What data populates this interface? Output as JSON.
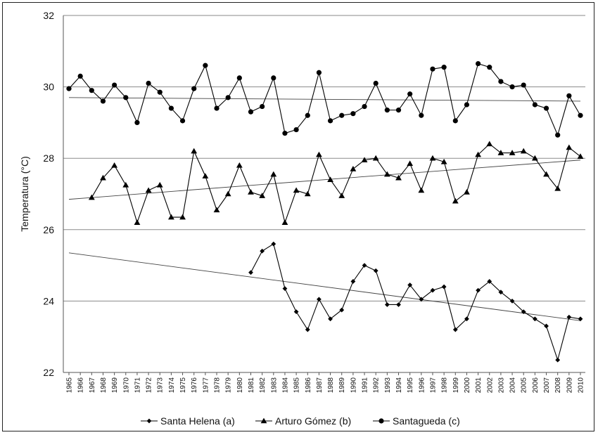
{
  "chart_data": {
    "type": "line",
    "title": "",
    "xlabel": "",
    "ylabel": "Temperatura (°C)",
    "ylim": [
      22,
      32
    ],
    "yticks": [
      22,
      24,
      26,
      28,
      30,
      32
    ],
    "grid": "horizontal",
    "legend_position": "bottom",
    "x": [
      1965,
      1966,
      1967,
      1968,
      1969,
      1970,
      1971,
      1972,
      1973,
      1974,
      1975,
      1976,
      1977,
      1978,
      1979,
      1980,
      1981,
      1982,
      1983,
      1984,
      1985,
      1986,
      1987,
      1988,
      1989,
      1990,
      1991,
      1992,
      1993,
      1994,
      1995,
      1996,
      1997,
      1998,
      1999,
      2000,
      2001,
      2002,
      2003,
      2004,
      2005,
      2006,
      2007,
      2008,
      2009,
      2010
    ],
    "series": [
      {
        "name": "Santa Helena (a)",
        "marker": "diamond",
        "color": "#000000",
        "values": [
          null,
          null,
          null,
          null,
          null,
          null,
          null,
          null,
          null,
          null,
          null,
          null,
          null,
          null,
          null,
          null,
          24.8,
          25.4,
          25.6,
          24.35,
          23.7,
          23.2,
          24.05,
          23.5,
          23.75,
          24.55,
          25.0,
          24.85,
          23.9,
          23.9,
          24.45,
          24.05,
          24.3,
          24.4,
          23.2,
          23.5,
          24.3,
          24.55,
          24.25,
          24.0,
          23.7,
          23.5,
          23.3,
          22.35,
          23.55,
          23.5
        ],
        "trend": [
          25.35,
          23.45
        ]
      },
      {
        "name": "Arturo Gómez (b)",
        "marker": "triangle",
        "color": "#000000",
        "values": [
          null,
          null,
          26.9,
          27.45,
          27.8,
          27.25,
          26.2,
          27.1,
          27.25,
          26.35,
          26.35,
          28.2,
          27.5,
          26.55,
          27.0,
          27.8,
          27.05,
          26.95,
          27.55,
          26.2,
          27.1,
          27.0,
          28.1,
          27.4,
          26.95,
          27.7,
          27.95,
          28.0,
          27.55,
          27.45,
          27.85,
          27.1,
          28.0,
          27.9,
          26.8,
          27.05,
          28.1,
          28.4,
          28.15,
          28.15,
          28.2,
          28.0,
          27.55,
          27.15,
          28.3,
          28.05
        ],
        "trend": [
          26.85,
          27.95
        ]
      },
      {
        "name": "Santagueda (c)",
        "marker": "circle",
        "color": "#000000",
        "values": [
          29.95,
          30.3,
          29.9,
          29.6,
          30.05,
          29.7,
          29.0,
          30.1,
          29.85,
          29.4,
          29.05,
          29.95,
          30.6,
          29.4,
          29.7,
          30.25,
          29.3,
          29.45,
          30.25,
          28.7,
          28.8,
          29.2,
          30.4,
          29.05,
          29.2,
          29.25,
          29.45,
          30.1,
          29.35,
          29.35,
          29.8,
          29.2,
          30.5,
          30.55,
          29.05,
          29.5,
          30.65,
          30.55,
          30.15,
          30.0,
          30.05,
          29.5,
          29.4,
          28.65,
          29.75,
          29.2
        ],
        "trend": [
          29.7,
          29.6
        ]
      }
    ]
  }
}
